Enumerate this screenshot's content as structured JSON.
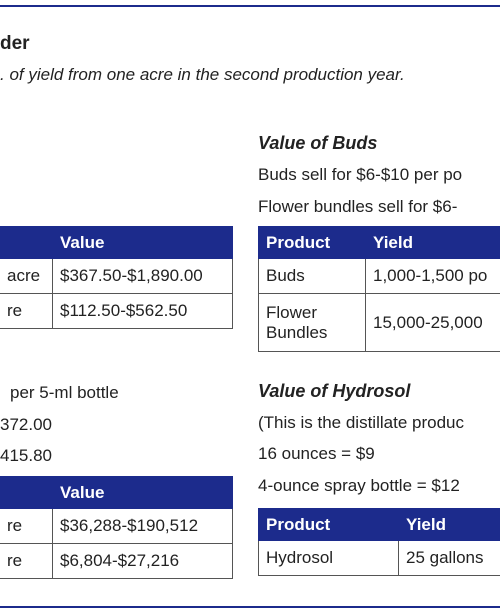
{
  "header": {
    "title": "der",
    "subtitle": ". of yield from one acre in the second production year."
  },
  "left": {
    "table1": {
      "columns": [
        "Value"
      ],
      "rows": [
        [
          "acre",
          "$367.50-$1,890.00"
        ],
        [
          "re",
          "$112.50-$562.50"
        ]
      ]
    },
    "lines": [
      "per 5-ml bottle",
      "372.00",
      "415.80"
    ],
    "table2": {
      "columns": [
        "Value"
      ],
      "rows": [
        [
          "re",
          "$36,288-$190,512"
        ],
        [
          "re",
          "$6,804-$27,216"
        ]
      ]
    }
  },
  "buds": {
    "title": "Value of Buds",
    "lines": [
      "Buds sell for $6-$10 per po",
      "Flower bundles sell for $6-"
    ],
    "table": {
      "columns": [
        "Product",
        "Yield"
      ],
      "rows": [
        [
          "Buds",
          "1,000-1,500 po"
        ],
        [
          "Flower Bundles",
          "15,000-25,000"
        ]
      ]
    }
  },
  "hydrosol": {
    "title": "Value of Hydrosol",
    "lines": [
      "(This is the distillate produc",
      "16 ounces = $9",
      "4-ounce spray bottle = $12"
    ],
    "table": {
      "columns": [
        "Product",
        "Yield"
      ],
      "rows": [
        [
          "Hydrosol",
          "25 gallons"
        ]
      ]
    }
  }
}
